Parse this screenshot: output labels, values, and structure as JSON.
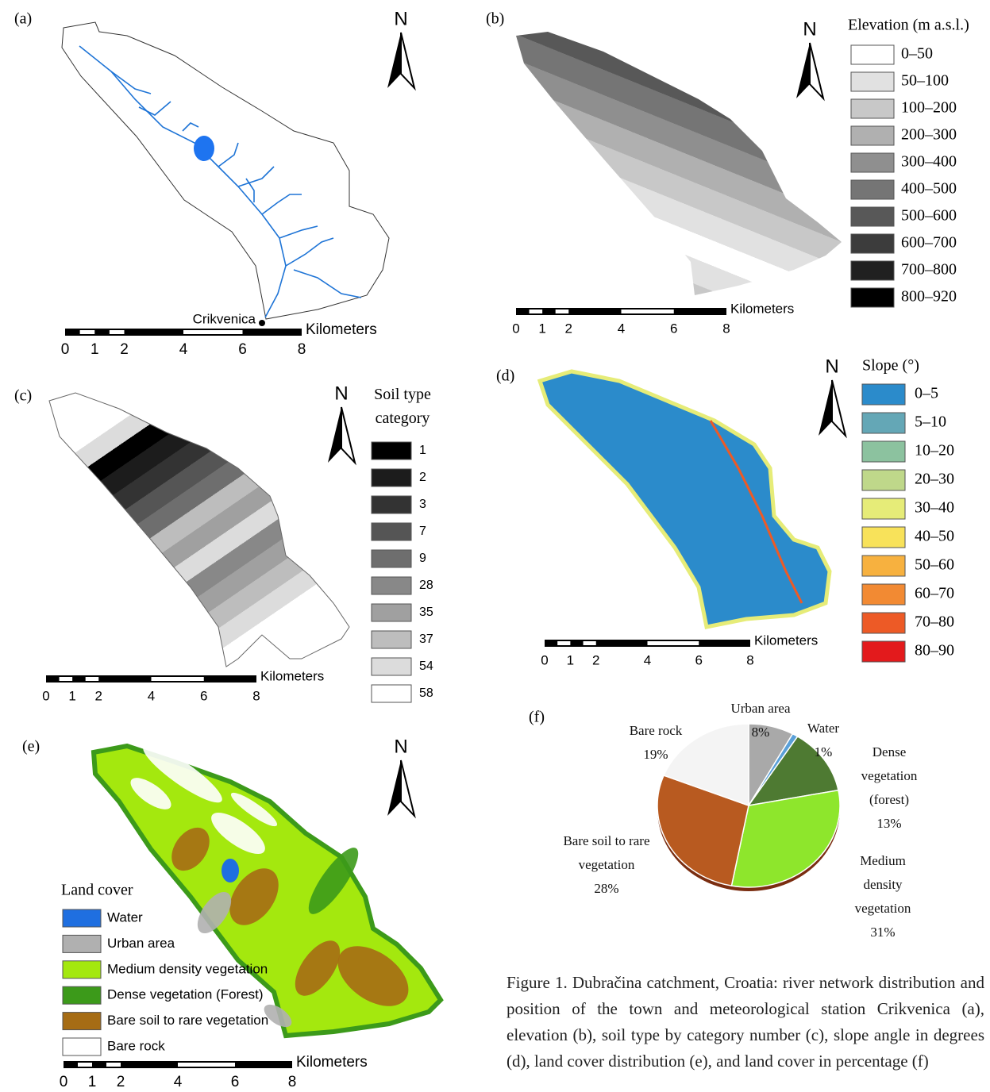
{
  "panels": {
    "a": {
      "label": "(a)",
      "town": "Crikvenica"
    },
    "b": {
      "label": "(b)",
      "legend": {
        "title": "Elevation (m a.s.l.)",
        "items": [
          {
            "label": "0–50",
            "color": "#ffffff"
          },
          {
            "label": "50–100",
            "color": "#e1e1e1"
          },
          {
            "label": "100–200",
            "color": "#c8c8c8"
          },
          {
            "label": "200–300",
            "color": "#b0b0b0"
          },
          {
            "label": "300–400",
            "color": "#8f8f8f"
          },
          {
            "label": "400–500",
            "color": "#757575"
          },
          {
            "label": "500–600",
            "color": "#585858"
          },
          {
            "label": "600–700",
            "color": "#3c3c3c"
          },
          {
            "label": "700–800",
            "color": "#202020"
          },
          {
            "label": "800–920",
            "color": "#000000"
          }
        ]
      }
    },
    "c": {
      "label": "(c)",
      "legend": {
        "title": "Soil type category",
        "items": [
          {
            "label": "1",
            "color": "#000000"
          },
          {
            "label": "2",
            "color": "#1c1c1c"
          },
          {
            "label": "3",
            "color": "#333333"
          },
          {
            "label": "7",
            "color": "#555555"
          },
          {
            "label": "9",
            "color": "#6e6e6e"
          },
          {
            "label": "28",
            "color": "#888888"
          },
          {
            "label": "35",
            "color": "#a0a0a0"
          },
          {
            "label": "37",
            "color": "#bdbdbd"
          },
          {
            "label": "54",
            "color": "#dcdcdc"
          },
          {
            "label": "58",
            "color": "#ffffff"
          }
        ]
      }
    },
    "d": {
      "label": "(d)",
      "legend": {
        "title": "Slope (°)",
        "items": [
          {
            "label": "0–5",
            "color": "#2b8bcb"
          },
          {
            "label": "5–10",
            "color": "#64a7b6"
          },
          {
            "label": "10–20",
            "color": "#8cc29f"
          },
          {
            "label": "20–30",
            "color": "#bfd88a"
          },
          {
            "label": "30–40",
            "color": "#e6ec78"
          },
          {
            "label": "40–50",
            "color": "#f8e25a"
          },
          {
            "label": "50–60",
            "color": "#f7b13f"
          },
          {
            "label": "60–70",
            "color": "#f28a33"
          },
          {
            "label": "70–80",
            "color": "#ed5a26"
          },
          {
            "label": "80–90",
            "color": "#e31a1c"
          }
        ]
      }
    },
    "e": {
      "label": "(e)",
      "legend": {
        "title": "Land cover",
        "items": [
          {
            "label": "Water",
            "color": "#1f6fe0"
          },
          {
            "label": "Urban area",
            "color": "#b0b0b0"
          },
          {
            "label": "Medium density vegetation",
            "color": "#a4e80e"
          },
          {
            "label": "Dense vegetation (Forest)",
            "color": "#3c9a1a"
          },
          {
            "label": "Bare soil to rare vegetation",
            "color": "#a66c14"
          },
          {
            "label": "Bare rock",
            "color": "#ffffff"
          }
        ]
      }
    }
  },
  "north": "N",
  "scale_bar": {
    "ticks": [
      0,
      1,
      2,
      4,
      6,
      8
    ],
    "unit": "Kilometers"
  },
  "chart_data": {
    "type": "pie",
    "label": "(f)",
    "categories": [
      "Urban area",
      "Water",
      "Dense vegetation (forest)",
      "Medium density vegetation",
      "Bare soil to rare vegetation",
      "Bare rock"
    ],
    "values": [
      8,
      1,
      13,
      31,
      28,
      19
    ],
    "value_labels": [
      "8%",
      "1%",
      "13%",
      "31%",
      "28%",
      "19%"
    ],
    "colors": [
      "#a9a9a9",
      "#5aa0d8",
      "#4e7a32",
      "#8ee62c",
      "#b85a20",
      "#f4f4f4"
    ]
  },
  "caption": "Figure 1. Dubračina catchment, Croatia: river network distribution and position of the town and meteorological station Crikvenica (a), elevation (b), soil type by category number (c), slope angle in degrees (d), land cover distribution (e), and land cover in percentage (f)"
}
